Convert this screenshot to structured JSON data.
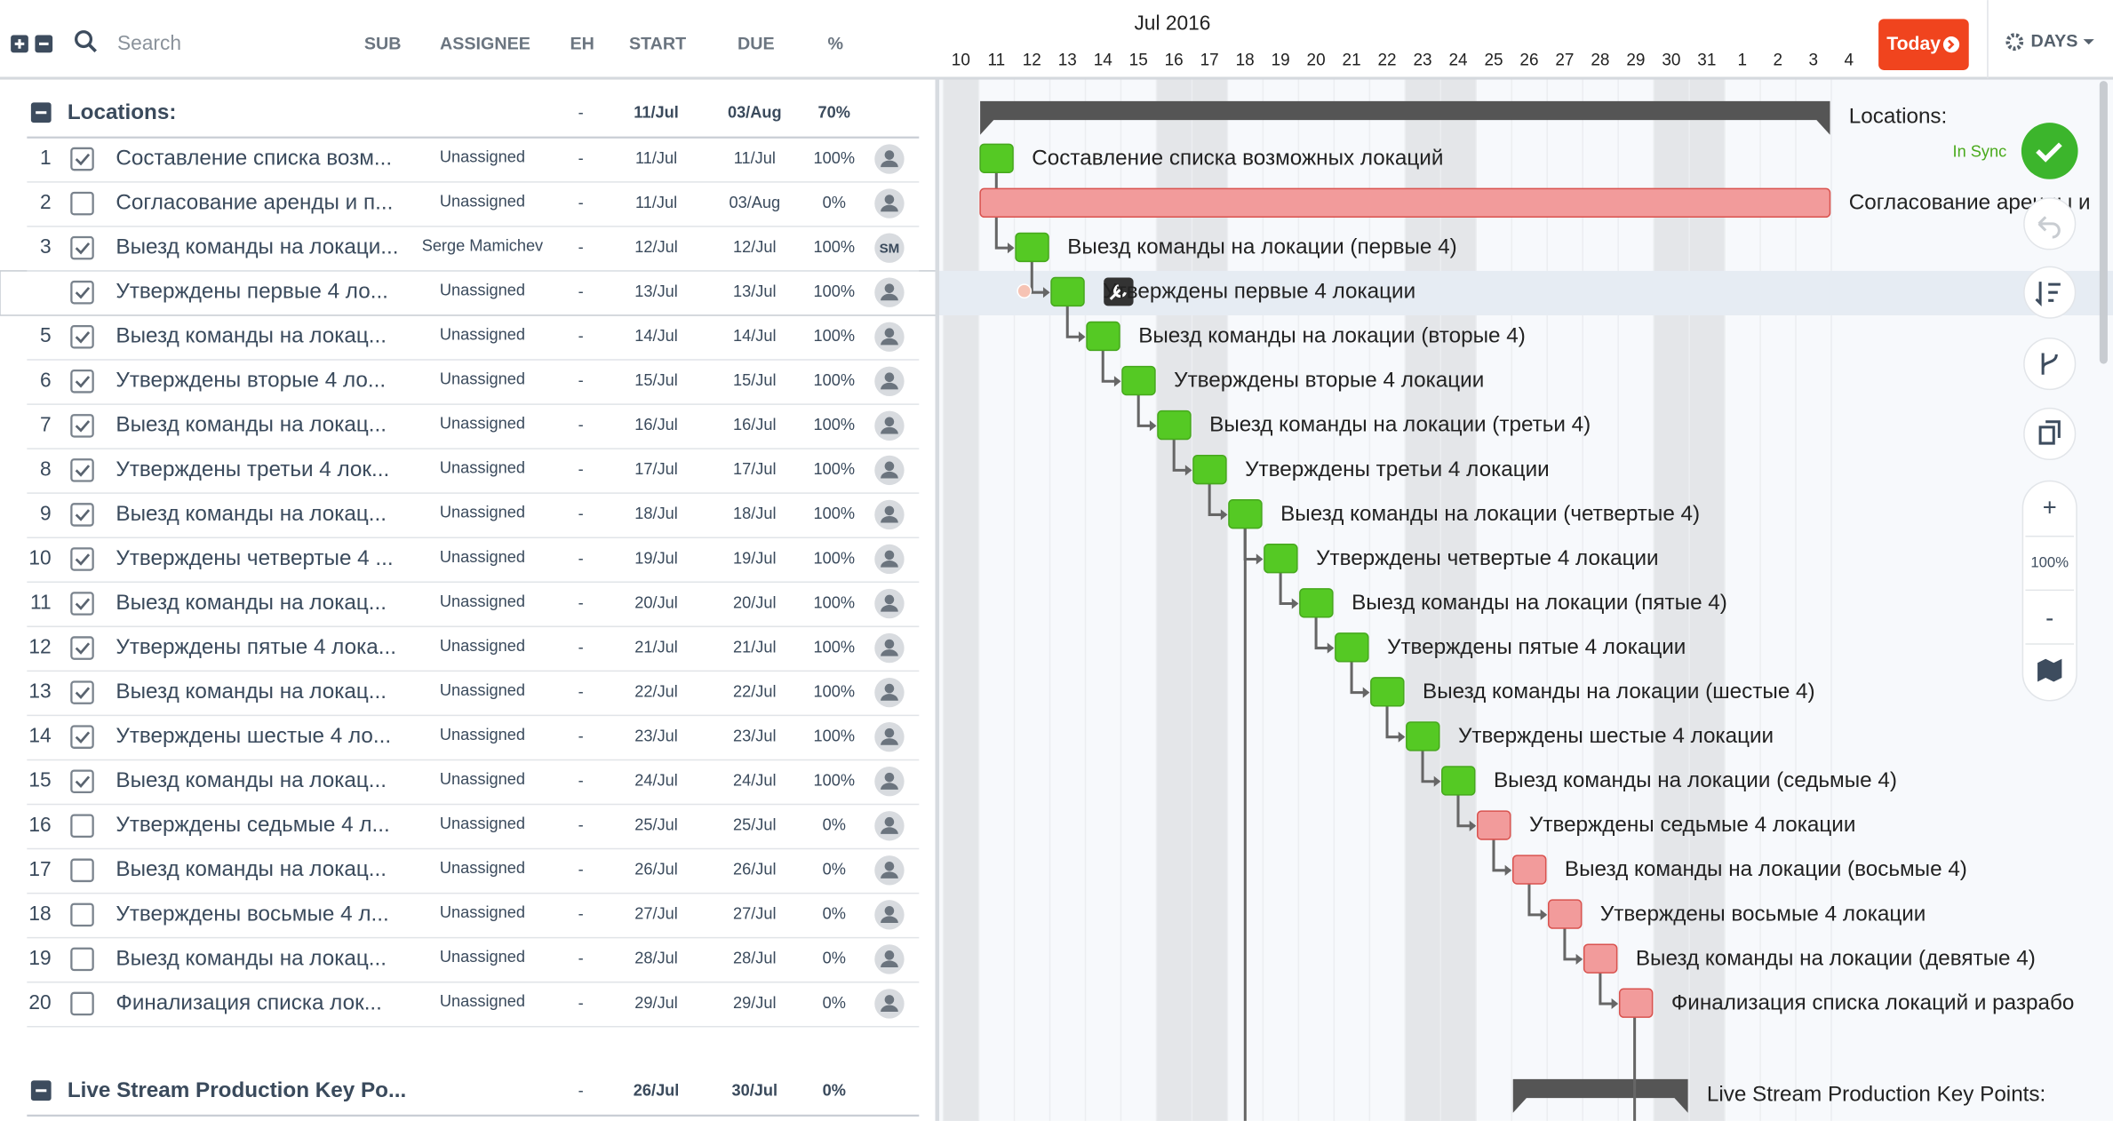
{
  "header": {
    "search": "Search",
    "columns": [
      "SUB",
      "ASSIGNEE",
      "EH",
      "START",
      "DUE",
      "%"
    ]
  },
  "timeline": {
    "month": "Jul 2016",
    "days": [
      10,
      11,
      12,
      13,
      14,
      15,
      16,
      17,
      18,
      19,
      20,
      21,
      22,
      23,
      24,
      25,
      26,
      27,
      28,
      29,
      30,
      31,
      1,
      2,
      3,
      4
    ],
    "today": "Today",
    "scale": "DAYS"
  },
  "sidebar": {
    "status": "In Sync",
    "zoom_in": "+",
    "zoom": "100%",
    "zoom_out": "-"
  },
  "groups": [
    {
      "name": "Locations:",
      "bar_label": "Locations:",
      "eh": "-",
      "start": "11/Jul",
      "due": "03/Aug",
      "percent": "70%",
      "rows": [
        {
          "num": 1,
          "checked": true,
          "name": "Составление списка возм...",
          "bar_label": "Составление списка возможных локаций",
          "assignee": "Unassigned",
          "eh": "-",
          "start": "11/Jul",
          "due": "11/Jul",
          "percent": "100%"
        },
        {
          "num": 2,
          "checked": false,
          "name": "Согласование аренды и п...",
          "bar_label": "Согласование аренды и",
          "assignee": "Unassigned",
          "eh": "-",
          "start": "11/Jul",
          "due": "03/Aug",
          "percent": "0%"
        },
        {
          "num": 3,
          "checked": true,
          "name": "Выезд команды на локаци...",
          "bar_label": "Выезд команды на локации (первые 4)",
          "assignee": "Serge Mamichev",
          "eh": "-",
          "start": "12/Jul",
          "due": "12/Jul",
          "percent": "100%",
          "avatar": "SM"
        },
        {
          "checked": true,
          "name": "Утверждены первые 4 ло...",
          "bar_label": "Утверждены первые 4 локации",
          "assignee": "Unassigned",
          "eh": "-",
          "start": "13/Jul",
          "due": "13/Jul",
          "percent": "100%"
        },
        {
          "num": 5,
          "checked": true,
          "name": "Выезд команды на локац...",
          "bar_label": "Выезд команды на локации (вторые 4)",
          "assignee": "Unassigned",
          "eh": "-",
          "start": "14/Jul",
          "due": "14/Jul",
          "percent": "100%"
        },
        {
          "num": 6,
          "checked": true,
          "name": "Утверждены вторые 4 ло...",
          "bar_label": "Утверждены вторые 4 локации",
          "assignee": "Unassigned",
          "eh": "-",
          "start": "15/Jul",
          "due": "15/Jul",
          "percent": "100%"
        },
        {
          "num": 7,
          "checked": true,
          "name": "Выезд команды на локац...",
          "bar_label": "Выезд команды на локации (третьи 4)",
          "assignee": "Unassigned",
          "eh": "-",
          "start": "16/Jul",
          "due": "16/Jul",
          "percent": "100%"
        },
        {
          "num": 8,
          "checked": true,
          "name": "Утверждены третьи 4 лок...",
          "bar_label": "Утверждены третьи 4 локации",
          "assignee": "Unassigned",
          "eh": "-",
          "start": "17/Jul",
          "due": "17/Jul",
          "percent": "100%"
        },
        {
          "num": 9,
          "checked": true,
          "name": "Выезд команды на локац...",
          "bar_label": "Выезд команды на локации (четвертые 4)",
          "assignee": "Unassigned",
          "eh": "-",
          "start": "18/Jul",
          "due": "18/Jul",
          "percent": "100%"
        },
        {
          "num": 10,
          "checked": true,
          "name": "Утверждены четвертые 4 ...",
          "bar_label": "Утверждены четвертые 4 локации",
          "assignee": "Unassigned",
          "eh": "-",
          "start": "19/Jul",
          "due": "19/Jul",
          "percent": "100%"
        },
        {
          "num": 11,
          "checked": true,
          "name": "Выезд команды на локац...",
          "bar_label": "Выезд команды на локации (пятые 4)",
          "assignee": "Unassigned",
          "eh": "-",
          "start": "20/Jul",
          "due": "20/Jul",
          "percent": "100%"
        },
        {
          "num": 12,
          "checked": true,
          "name": "Утверждены пятые 4 лока...",
          "bar_label": "Утверждены пятые 4 локации",
          "assignee": "Unassigned",
          "eh": "-",
          "start": "21/Jul",
          "due": "21/Jul",
          "percent": "100%"
        },
        {
          "num": 13,
          "checked": true,
          "name": "Выезд команды на локац...",
          "bar_label": "Выезд команды на локации (шестые 4)",
          "assignee": "Unassigned",
          "eh": "-",
          "start": "22/Jul",
          "due": "22/Jul",
          "percent": "100%"
        },
        {
          "num": 14,
          "checked": true,
          "name": "Утверждены шестые 4 ло...",
          "bar_label": "Утверждены шестые 4 локации",
          "assignee": "Unassigned",
          "eh": "-",
          "start": "23/Jul",
          "due": "23/Jul",
          "percent": "100%"
        },
        {
          "num": 15,
          "checked": true,
          "name": "Выезд команды на локац...",
          "bar_label": "Выезд команды на локации (седьмые 4)",
          "assignee": "Unassigned",
          "eh": "-",
          "start": "24/Jul",
          "due": "24/Jul",
          "percent": "100%"
        },
        {
          "num": 16,
          "checked": false,
          "name": "Утверждены седьмые 4 л...",
          "bar_label": "Утверждены седьмые 4 локации",
          "assignee": "Unassigned",
          "eh": "-",
          "start": "25/Jul",
          "due": "25/Jul",
          "percent": "0%"
        },
        {
          "num": 17,
          "checked": false,
          "name": "Выезд команды на локац...",
          "bar_label": "Выезд команды на локации (восьмые 4)",
          "assignee": "Unassigned",
          "eh": "-",
          "start": "26/Jul",
          "due": "26/Jul",
          "percent": "0%"
        },
        {
          "num": 18,
          "checked": false,
          "name": "Утверждены восьмые 4 л...",
          "bar_label": "Утверждены восьмые 4 локации",
          "assignee": "Unassigned",
          "eh": "-",
          "start": "27/Jul",
          "due": "27/Jul",
          "percent": "0%"
        },
        {
          "num": 19,
          "checked": false,
          "name": "Выезд команды на локац...",
          "bar_label": "Выезд команды на локации (девятые 4)",
          "assignee": "Unassigned",
          "eh": "-",
          "start": "28/Jul",
          "due": "28/Jul",
          "percent": "0%"
        },
        {
          "num": 20,
          "checked": false,
          "name": "Финализация списка лок...",
          "bar_label": "Финализация списка локаций и разрабо",
          "assignee": "Unassigned",
          "eh": "-",
          "start": "29/Jul",
          "due": "29/Jul",
          "percent": "0%"
        }
      ]
    },
    {
      "name": "Live Stream Production Key Po...",
      "bar_label": "Live Stream Production Key Points:",
      "eh": "-",
      "start": "26/Jul",
      "due": "30/Jul",
      "percent": "0%",
      "rows": []
    }
  ]
}
